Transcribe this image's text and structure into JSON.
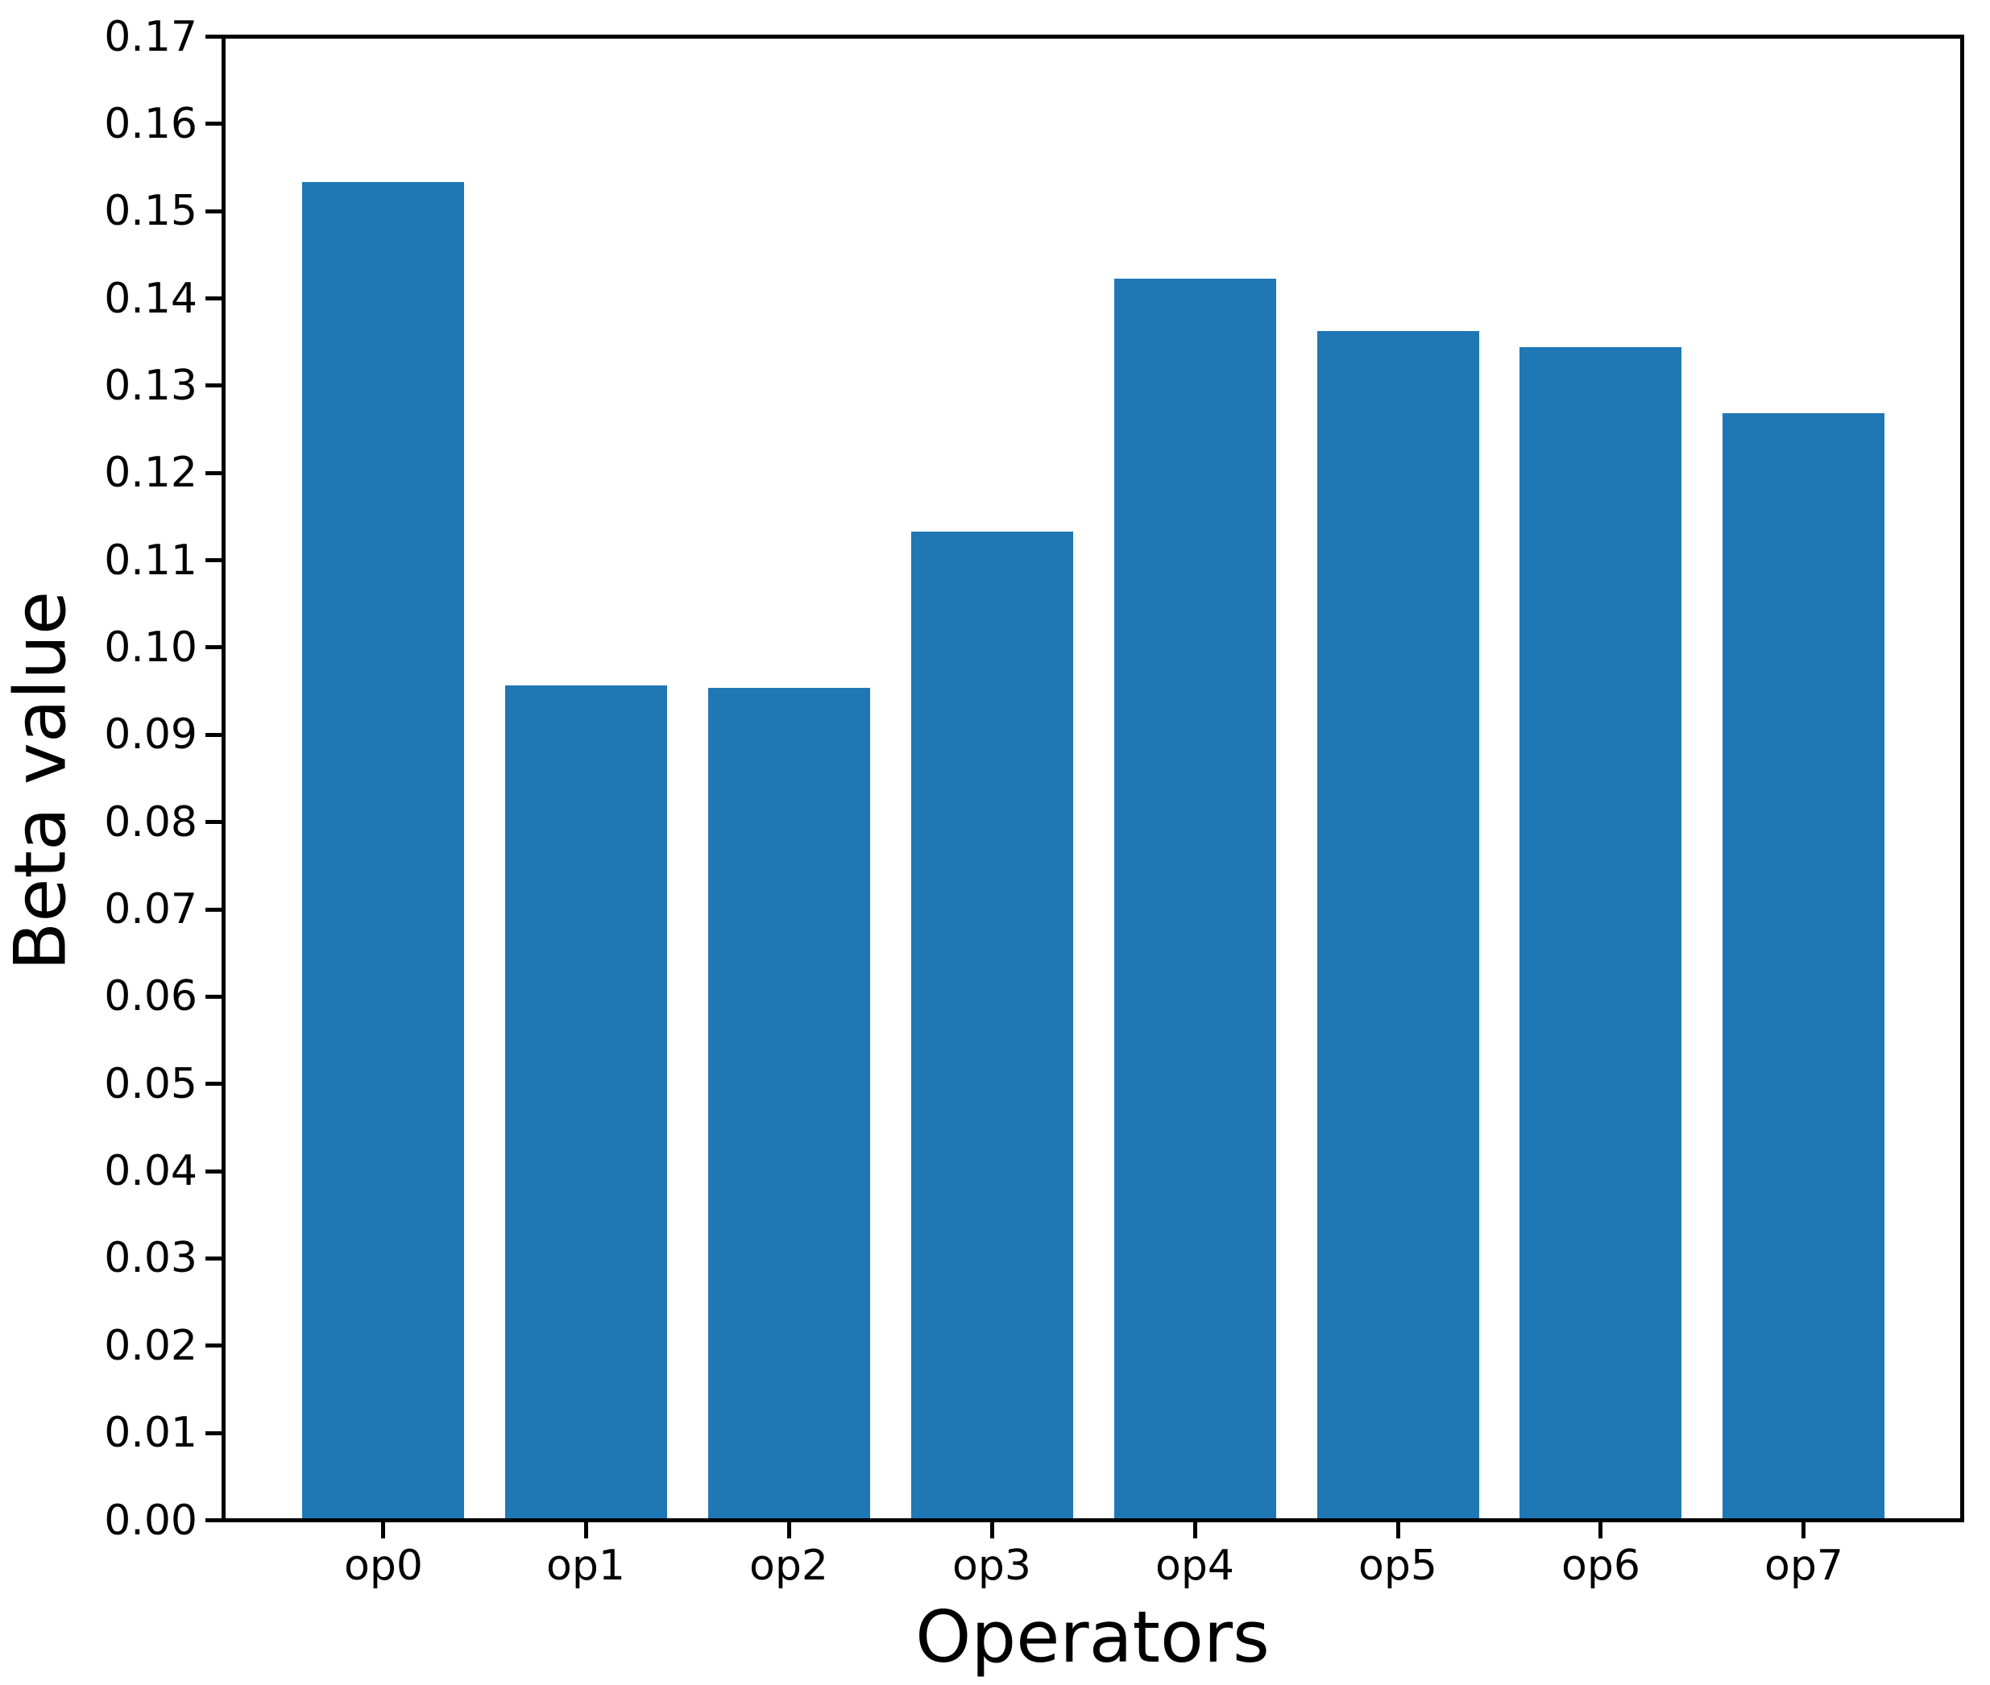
{
  "chart_data": {
    "type": "bar",
    "title": "",
    "xlabel": "Operators",
    "ylabel": "Beta value",
    "categories": [
      "op0",
      "op1",
      "op2",
      "op3",
      "op4",
      "op5",
      "op6",
      "op7"
    ],
    "values": [
      0.1535,
      0.0957,
      0.0954,
      0.1134,
      0.1424,
      0.1364,
      0.1346,
      0.127
    ],
    "series": [
      {
        "name": "Beta value",
        "values": [
          0.1535,
          0.0957,
          0.0954,
          0.1134,
          0.1424,
          0.1364,
          0.1346,
          0.127
        ]
      }
    ],
    "ylim": [
      0.0,
      0.17
    ],
    "ytick_step": 0.01,
    "ytick_labels": [
      "0.00",
      "0.01",
      "0.02",
      "0.03",
      "0.04",
      "0.05",
      "0.06",
      "0.07",
      "0.08",
      "0.09",
      "0.10",
      "0.11",
      "0.12",
      "0.13",
      "0.14",
      "0.15",
      "0.16",
      "0.17"
    ],
    "bar_color": "#1f77b4",
    "axis_color": "#000000",
    "background_color": "#ffffff",
    "grid": false,
    "legend_position": "none"
  }
}
